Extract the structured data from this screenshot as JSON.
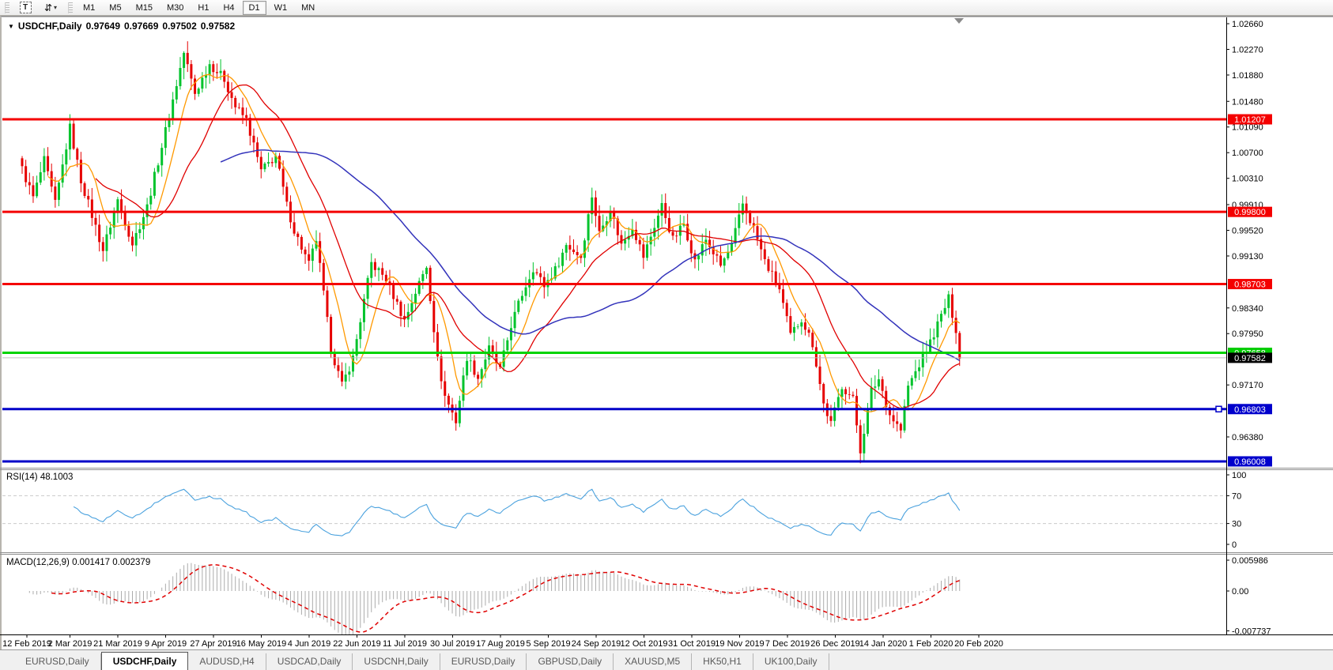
{
  "icons": {
    "chart_menu": "▼",
    "dropdown_caret": "▾",
    "text_tool": "T",
    "arrows_tool": "⇵"
  },
  "toolbar": {
    "timeframes": [
      "M1",
      "M5",
      "M15",
      "M30",
      "H1",
      "H4",
      "D1",
      "W1",
      "MN"
    ],
    "active_timeframe": "D1"
  },
  "window": {
    "title_symbol": "USDCHF,Daily",
    "quote_open": "0.97649",
    "quote_high": "0.97669",
    "quote_low": "0.97502",
    "quote_close": "0.97582"
  },
  "indicators": {
    "rsi": {
      "label": "RSI(14) 48.1003",
      "period": 14,
      "value": 48.1003,
      "axis": [
        {
          "label": "100",
          "value": 100
        },
        {
          "label": "70",
          "value": 70
        },
        {
          "label": "30",
          "value": 30
        },
        {
          "label": "0",
          "value": 0
        }
      ],
      "dashed_levels": [
        70,
        30
      ],
      "line_color": "#4ba2de",
      "level_color": "#c9c9c9"
    },
    "macd": {
      "label": "MACD(12,26,9) 0.001417 0.002379",
      "fast": 12,
      "slow": 26,
      "signal_period": 9,
      "value": 0.001417,
      "signal_value": 0.002379,
      "axis": [
        {
          "label": "0.005986",
          "value": 0.005986
        },
        {
          "label": "0.00",
          "value": 0
        },
        {
          "label": "-0.007737",
          "value": -0.007737
        }
      ],
      "bar_color": "#ababab",
      "signal_color": "#e00000"
    }
  },
  "price_axis": {
    "ticks": [
      "1.02660",
      "1.02270",
      "1.01880",
      "1.01480",
      "1.01090",
      "1.00700",
      "1.00310",
      "0.99910",
      "0.99520",
      "0.99130",
      "0.98340",
      "0.97950",
      "0.97170",
      "0.96380"
    ]
  },
  "levels": [
    {
      "label": "1.01207",
      "value": 1.01207,
      "color": "#f40000",
      "line_width": 3
    },
    {
      "label": "0.99800",
      "value": 0.998,
      "color": "#f40000",
      "line_width": 3
    },
    {
      "label": "0.98703",
      "value": 0.98703,
      "color": "#f40000",
      "line_width": 3
    },
    {
      "label": "0.97658",
      "value": 0.97658,
      "color": "#00cc00",
      "line_color": "#00d400",
      "line_width": 3
    },
    {
      "label": "0.97582",
      "value": 0.97582,
      "color": "#000000",
      "line_color": "#c0c0c0",
      "line_width": 1,
      "current": true
    },
    {
      "label": "0.96803",
      "value": 0.96803,
      "color": "#0000cc",
      "line_color": "#0000c8",
      "line_width": 3,
      "handle": true
    },
    {
      "label": "0.96008",
      "value": 0.96008,
      "color": "#0000cc",
      "line_color": "#0000c8",
      "line_width": 3
    }
  ],
  "x_axis_dates": [
    "12 Feb 2019",
    "2 Mar 2019",
    "21 Mar 2019",
    "9 Apr 2019",
    "27 Apr 2019",
    "16 May 2019",
    "4 Jun 2019",
    "22 Jun 2019",
    "11 Jul 2019",
    "30 Jul 2019",
    "17 Aug 2019",
    "5 Sep 2019",
    "24 Sep 2019",
    "12 Oct 2019",
    "31 Oct 2019",
    "19 Nov 2019",
    "7 Dec 2019",
    "26 Dec 2019",
    "14 Jan 2020",
    "1 Feb 2020",
    "20 Feb 2020"
  ],
  "chart_data": {
    "type": "candlestick",
    "symbol": "USDCHF",
    "timeframe": "Daily",
    "title": "USDCHF,Daily",
    "ohlc_quote": {
      "open": 0.97649,
      "high": 0.97669,
      "low": 0.97502,
      "close": 0.97582
    },
    "visible_price_range": [
      0.9591,
      1.0276
    ],
    "candle_count": 256,
    "bull_color": "#00c32c",
    "bear_color": "#e60000",
    "close_anchors": [
      [
        0,
        1.0045
      ],
      [
        3,
        1.0002
      ],
      [
        6,
        1.0058
      ],
      [
        9,
        0.9992
      ],
      [
        13,
        1.0108
      ],
      [
        16,
        1.0028
      ],
      [
        19,
        0.9975
      ],
      [
        22,
        0.9922
      ],
      [
        26,
        0.9998
      ],
      [
        30,
        0.9932
      ],
      [
        34,
        0.9988
      ],
      [
        38,
        1.008
      ],
      [
        41,
        1.015
      ],
      [
        44,
        1.0222
      ],
      [
        47,
        1.016
      ],
      [
        51,
        1.0205
      ],
      [
        55,
        1.0182
      ],
      [
        58,
        1.014
      ],
      [
        61,
        1.012
      ],
      [
        65,
        1.0042
      ],
      [
        69,
        1.0065
      ],
      [
        72,
        0.999
      ],
      [
        74,
        0.9952
      ],
      [
        78,
        0.99
      ],
      [
        80,
        0.9938
      ],
      [
        84,
        0.9772
      ],
      [
        87,
        0.9716
      ],
      [
        90,
        0.9758
      ],
      [
        95,
        0.9902
      ],
      [
        99,
        0.9878
      ],
      [
        104,
        0.9815
      ],
      [
        107,
        0.9858
      ],
      [
        110,
        0.9898
      ],
      [
        113,
        0.9755
      ],
      [
        115,
        0.97
      ],
      [
        118,
        0.9662
      ],
      [
        121,
        0.976
      ],
      [
        124,
        0.9728
      ],
      [
        127,
        0.9772
      ],
      [
        130,
        0.974
      ],
      [
        133,
        0.9808
      ],
      [
        136,
        0.9855
      ],
      [
        139,
        0.9895
      ],
      [
        142,
        0.9868
      ],
      [
        145,
        0.9892
      ],
      [
        148,
        0.993
      ],
      [
        152,
        0.9912
      ],
      [
        155,
        1.0005
      ],
      [
        157,
        0.9948
      ],
      [
        160,
        0.9985
      ],
      [
        163,
        0.993
      ],
      [
        166,
        0.9958
      ],
      [
        169,
        0.9912
      ],
      [
        174,
        0.999
      ],
      [
        177,
        0.9938
      ],
      [
        180,
        0.9962
      ],
      [
        183,
        0.9905
      ],
      [
        186,
        0.9938
      ],
      [
        190,
        0.9898
      ],
      [
        193,
        0.9928
      ],
      [
        196,
        0.9992
      ],
      [
        199,
        0.9955
      ],
      [
        202,
        0.9905
      ],
      [
        206,
        0.9862
      ],
      [
        209,
        0.9792
      ],
      [
        212,
        0.9818
      ],
      [
        215,
        0.978
      ],
      [
        218,
        0.9688
      ],
      [
        220,
        0.9658
      ],
      [
        223,
        0.9716
      ],
      [
        226,
        0.9695
      ],
      [
        228,
        0.9618
      ],
      [
        231,
        0.9708
      ],
      [
        233,
        0.9726
      ],
      [
        236,
        0.9672
      ],
      [
        239,
        0.9648
      ],
      [
        241,
        0.9715
      ],
      [
        244,
        0.9748
      ],
      [
        247,
        0.9782
      ],
      [
        250,
        0.9822
      ],
      [
        252,
        0.9848
      ],
      [
        254,
        0.9802
      ],
      [
        255,
        0.9758
      ]
    ],
    "moving_averages": [
      {
        "period": 8,
        "color": "#ff9900"
      },
      {
        "period": 21,
        "color": "#e00000"
      },
      {
        "period": 55,
        "color": "#3333bb"
      }
    ]
  },
  "tabs": {
    "items": [
      "EURUSD,Daily",
      "USDCHF,Daily",
      "AUDUSD,H4",
      "USDCAD,Daily",
      "USDCNH,Daily",
      "EURUSD,Daily",
      "GBPUSD,Daily",
      "XAUUSD,M5",
      "HK50,H1",
      "UK100,Daily"
    ],
    "active_index": 1
  }
}
